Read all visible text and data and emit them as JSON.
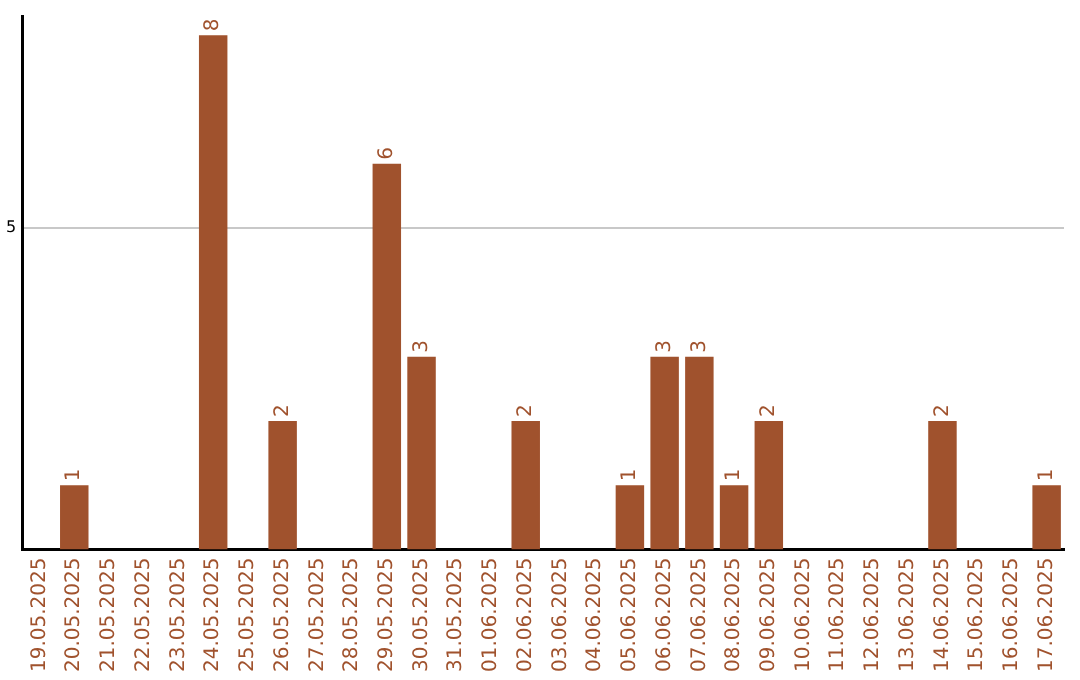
{
  "chart_data": {
    "type": "bar",
    "categories": [
      "19.05.2025",
      "20.05.2025",
      "21.05.2025",
      "22.05.2025",
      "23.05.2025",
      "24.05.2025",
      "25.05.2025",
      "26.05.2025",
      "27.05.2025",
      "28.05.2025",
      "29.05.2025",
      "30.05.2025",
      "31.05.2025",
      "01.06.2025",
      "02.06.2025",
      "03.06.2025",
      "04.06.2025",
      "05.06.2025",
      "06.06.2025",
      "07.06.2025",
      "08.06.2025",
      "09.06.2025",
      "10.06.2025",
      "11.06.2025",
      "12.06.2025",
      "13.06.2025",
      "14.06.2025",
      "15.06.2025",
      "16.06.2025",
      "17.06.2025"
    ],
    "values": [
      0,
      1,
      0,
      0,
      0,
      8,
      0,
      2,
      0,
      0,
      6,
      3,
      0,
      0,
      2,
      0,
      0,
      1,
      3,
      3,
      1,
      2,
      0,
      0,
      0,
      0,
      2,
      0,
      0,
      1
    ],
    "value_labels": [
      null,
      "1",
      null,
      null,
      null,
      "8",
      null,
      "2",
      null,
      null,
      "6",
      "3",
      null,
      null,
      "2",
      null,
      null,
      "1",
      "3",
      "3",
      "1",
      "2",
      null,
      null,
      null,
      null,
      "2",
      null,
      null,
      "1"
    ],
    "color": "#a0522d",
    "ylim": [
      0,
      8.3
    ],
    "yticks": [
      5
    ],
    "grid": "y",
    "legend": false
  }
}
